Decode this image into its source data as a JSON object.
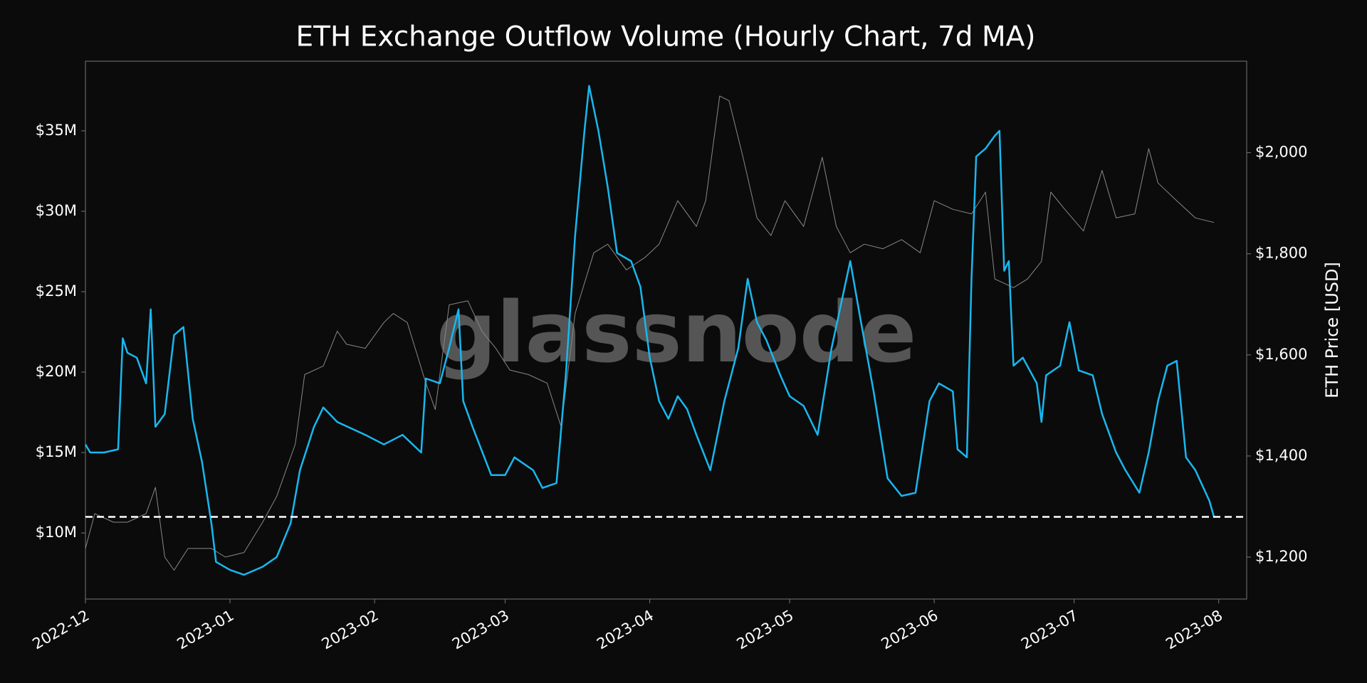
{
  "chart_data": {
    "type": "line",
    "title": "ETH Exchange Outflow Volume (Hourly Chart, 7d MA)",
    "watermark": "glassnode",
    "y2label": "ETH Price [USD]",
    "xlim": [
      "2022-12-01",
      "2023-08-07"
    ],
    "xticks": [
      {
        "value": "2022-12-01",
        "label": "2022-12"
      },
      {
        "value": "2023-01-01",
        "label": "2023-01"
      },
      {
        "value": "2023-02-01",
        "label": "2023-02"
      },
      {
        "value": "2023-03-01",
        "label": "2023-03"
      },
      {
        "value": "2023-04-01",
        "label": "2023-04"
      },
      {
        "value": "2023-05-01",
        "label": "2023-05"
      },
      {
        "value": "2023-06-01",
        "label": "2023-06"
      },
      {
        "value": "2023-07-01",
        "label": "2023-07"
      },
      {
        "value": "2023-08-01",
        "label": "2023-08"
      }
    ],
    "ylim": [
      5.89,
      39.33
    ],
    "yticks": [
      {
        "value": 10,
        "label": "$10M"
      },
      {
        "value": 15,
        "label": "$15M"
      },
      {
        "value": 20,
        "label": "$20M"
      },
      {
        "value": 25,
        "label": "$25M"
      },
      {
        "value": 30,
        "label": "$30M"
      },
      {
        "value": 35,
        "label": "$35M"
      }
    ],
    "y2lim": [
      1117,
      2181
    ],
    "y2ticks": [
      {
        "value": 1200,
        "label": "$1,200"
      },
      {
        "value": 1400,
        "label": "$1,400"
      },
      {
        "value": 1600,
        "label": "$1,600"
      },
      {
        "value": 1800,
        "label": "$1,800"
      },
      {
        "value": 2000,
        "label": "$2,000"
      }
    ],
    "reference_line": {
      "value": 11.0,
      "color": "#ffffff",
      "dashed": true
    },
    "series": [
      {
        "color": "#888888",
        "axis": "y2",
        "width": 1,
        "x": [
          "2022-12-01",
          "2022-12-03",
          "2022-12-07",
          "2022-12-10",
          "2022-12-14",
          "2022-12-16",
          "2022-12-18",
          "2022-12-20",
          "2022-12-23",
          "2022-12-28",
          "2022-12-31",
          "2023-01-04",
          "2023-01-08",
          "2023-01-11",
          "2023-01-15",
          "2023-01-17",
          "2023-01-21",
          "2023-01-24",
          "2023-01-26",
          "2023-01-30",
          "2023-02-03",
          "2023-02-05",
          "2023-02-08",
          "2023-02-12",
          "2023-02-14",
          "2023-02-17",
          "2023-02-21",
          "2023-02-24",
          "2023-02-27",
          "2023-03-02",
          "2023-03-06",
          "2023-03-10",
          "2023-03-13",
          "2023-03-16",
          "2023-03-20",
          "2023-03-23",
          "2023-03-27",
          "2023-03-31",
          "2023-04-03",
          "2023-04-07",
          "2023-04-11",
          "2023-04-13",
          "2023-04-16",
          "2023-04-18",
          "2023-04-21",
          "2023-04-24",
          "2023-04-27",
          "2023-04-30",
          "2023-05-04",
          "2023-05-08",
          "2023-05-11",
          "2023-05-14",
          "2023-05-17",
          "2023-05-21",
          "2023-05-25",
          "2023-05-29",
          "2023-06-01",
          "2023-06-05",
          "2023-06-09",
          "2023-06-12",
          "2023-06-14",
          "2023-06-18",
          "2023-06-21",
          "2023-06-24",
          "2023-06-26",
          "2023-06-29",
          "2023-07-03",
          "2023-07-07",
          "2023-07-10",
          "2023-07-14",
          "2023-07-17",
          "2023-07-19",
          "2023-07-23",
          "2023-07-27",
          "2023-07-31"
        ],
        "values": [
          1217,
          1286,
          1269,
          1269,
          1286,
          1338,
          1200,
          1174,
          1217,
          1217,
          1200,
          1209,
          1269,
          1320,
          1424,
          1561,
          1578,
          1647,
          1621,
          1613,
          1664,
          1682,
          1664,
          1544,
          1492,
          1699,
          1707,
          1647,
          1613,
          1570,
          1561,
          1544,
          1458,
          1682,
          1802,
          1819,
          1768,
          1793,
          1819,
          1905,
          1854,
          1905,
          2112,
          2103,
          1991,
          1871,
          1836,
          1905,
          1854,
          1991,
          1854,
          1802,
          1819,
          1810,
          1828,
          1802,
          1905,
          1888,
          1879,
          1922,
          1750,
          1733,
          1750,
          1785,
          1922,
          1888,
          1845,
          1965,
          1871,
          1879,
          2008,
          1940,
          1905,
          1871,
          1862
        ]
      },
      {
        "color": "#18b8f0",
        "axis": "y",
        "width": 2.5,
        "x": [
          "2022-12-01",
          "2022-12-02",
          "2022-12-05",
          "2022-12-08",
          "2022-12-09",
          "2022-12-10",
          "2022-12-12",
          "2022-12-14",
          "2022-12-15",
          "2022-12-16",
          "2022-12-18",
          "2022-12-20",
          "2022-12-22",
          "2022-12-24",
          "2022-12-26",
          "2022-12-28",
          "2022-12-29",
          "2023-01-01",
          "2023-01-04",
          "2023-01-08",
          "2023-01-11",
          "2023-01-14",
          "2023-01-16",
          "2023-01-19",
          "2023-01-21",
          "2023-01-24",
          "2023-01-30",
          "2023-02-03",
          "2023-02-07",
          "2023-02-11",
          "2023-02-12",
          "2023-02-15",
          "2023-02-17",
          "2023-02-19",
          "2023-02-20",
          "2023-02-22",
          "2023-02-26",
          "2023-03-01",
          "2023-03-03",
          "2023-03-07",
          "2023-03-09",
          "2023-03-12",
          "2023-03-14",
          "2023-03-16",
          "2023-03-18",
          "2023-03-19",
          "2023-03-21",
          "2023-03-23",
          "2023-03-25",
          "2023-03-28",
          "2023-03-30",
          "2023-04-01",
          "2023-04-03",
          "2023-04-05",
          "2023-04-07",
          "2023-04-09",
          "2023-04-11",
          "2023-04-14",
          "2023-04-17",
          "2023-04-20",
          "2023-04-22",
          "2023-04-24",
          "2023-04-26",
          "2023-04-29",
          "2023-05-01",
          "2023-05-04",
          "2023-05-07",
          "2023-05-10",
          "2023-05-12",
          "2023-05-14",
          "2023-05-16",
          "2023-05-19",
          "2023-05-22",
          "2023-05-25",
          "2023-05-28",
          "2023-05-31",
          "2023-06-02",
          "2023-06-05",
          "2023-06-06",
          "2023-06-08",
          "2023-06-09",
          "2023-06-10",
          "2023-06-12",
          "2023-06-14",
          "2023-06-15",
          "2023-06-16",
          "2023-06-17",
          "2023-06-18",
          "2023-06-20",
          "2023-06-23",
          "2023-06-24",
          "2023-06-25",
          "2023-06-28",
          "2023-06-30",
          "2023-07-02",
          "2023-07-05",
          "2023-07-07",
          "2023-07-10",
          "2023-07-12",
          "2023-07-15",
          "2023-07-17",
          "2023-07-19",
          "2023-07-21",
          "2023-07-23",
          "2023-07-25",
          "2023-07-27",
          "2023-07-30",
          "2023-07-31"
        ],
        "values": [
          15.5,
          15.0,
          15.0,
          15.2,
          22.1,
          21.2,
          20.9,
          19.3,
          23.9,
          16.6,
          17.4,
          22.3,
          22.8,
          17.1,
          14.4,
          10.6,
          8.2,
          7.7,
          7.4,
          7.9,
          8.5,
          10.6,
          13.9,
          16.6,
          17.8,
          16.9,
          16.1,
          15.5,
          16.1,
          15.0,
          19.6,
          19.3,
          21.5,
          23.9,
          18.2,
          16.6,
          13.6,
          13.6,
          14.7,
          13.9,
          12.8,
          13.1,
          19.8,
          28.5,
          35.0,
          37.8,
          35.0,
          31.5,
          27.4,
          26.9,
          25.3,
          20.9,
          18.2,
          17.1,
          18.5,
          17.7,
          16.1,
          13.9,
          18.2,
          21.5,
          25.8,
          23.1,
          22.0,
          19.8,
          18.5,
          17.9,
          16.1,
          21.5,
          24.2,
          26.9,
          23.6,
          18.8,
          13.4,
          12.3,
          12.5,
          18.2,
          19.3,
          18.8,
          15.2,
          14.7,
          25.8,
          33.4,
          33.9,
          34.7,
          35.0,
          26.3,
          26.9,
          20.4,
          20.9,
          19.3,
          16.9,
          19.8,
          20.4,
          23.1,
          20.1,
          19.8,
          17.4,
          15.0,
          13.9,
          12.5,
          15.0,
          18.2,
          20.4,
          20.7,
          14.7,
          13.9,
          12.0,
          11.0
        ]
      }
    ]
  }
}
